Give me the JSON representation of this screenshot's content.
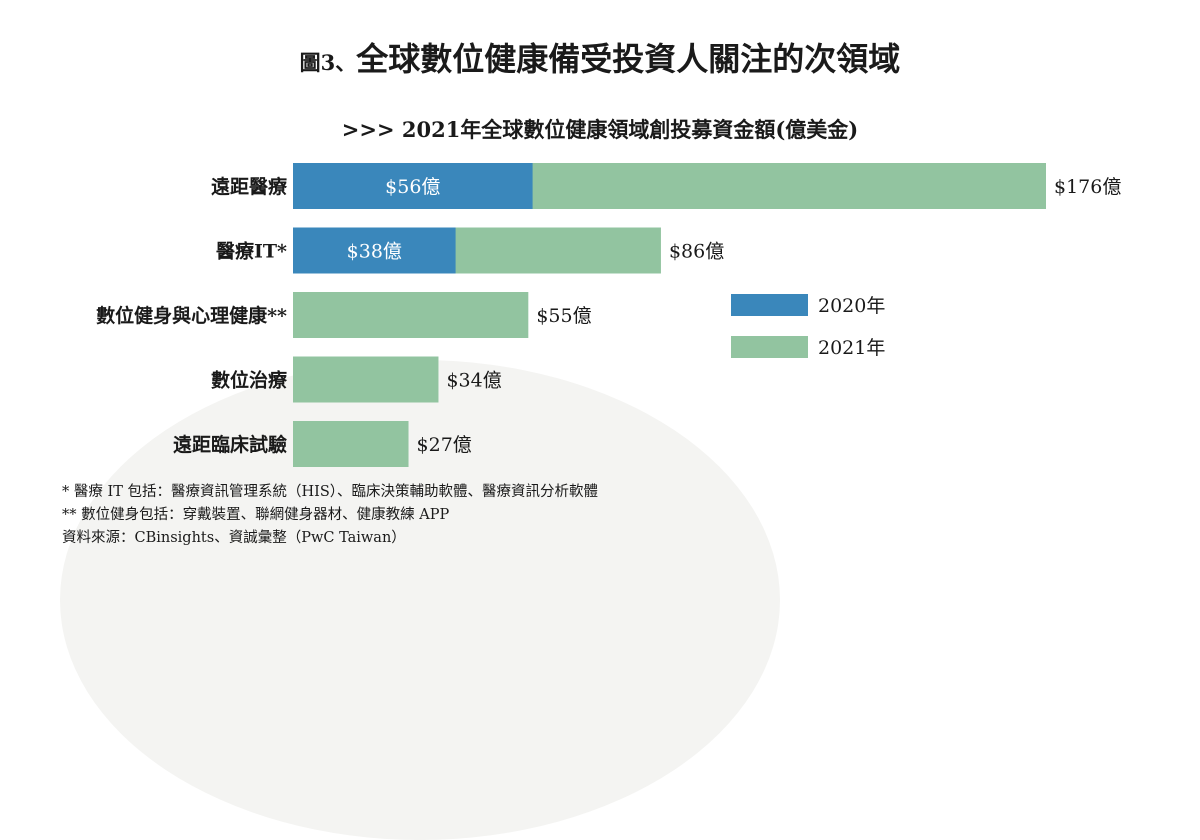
{
  "figure_title": {
    "number": "圖3、",
    "text": "全球數位健康備受投資人關注的次領域"
  },
  "chart_data": {
    "type": "bar",
    "orientation": "horizontal",
    "title": ">>> 2021年全球數位健康領域創投募資金額(億美金)",
    "categories": [
      "遠距醫療",
      "醫療IT*",
      "數位健身與心理健康**",
      "數位治療",
      "遠距臨床試驗"
    ],
    "series": [
      {
        "name": "2020年",
        "values": [
          56,
          38,
          null,
          null,
          null
        ],
        "color": "#3a87bb"
      },
      {
        "name": "2021年",
        "values": [
          176,
          86,
          55,
          34,
          27
        ],
        "color": "#92c4a0"
      }
    ],
    "value_labels_2020": [
      "$56億",
      "$38億",
      "",
      "",
      ""
    ],
    "value_labels_2021": [
      "$176億",
      "$86億",
      "$55億",
      "$34億",
      "$27億"
    ],
    "xlim": [
      0,
      176
    ],
    "legend_placement": "right-middle",
    "grid": false
  },
  "notes": [
    "* 醫療 IT 包括：醫療資訊管理系統（HIS）、臨床決策輔助軟體、醫療資訊分析軟體",
    "** 數位健身包括：穿戴裝置、聯網健身器材、健康教練 APP",
    "資料來源：CBinsights、資誠彙整（PwC Taiwan）"
  ]
}
